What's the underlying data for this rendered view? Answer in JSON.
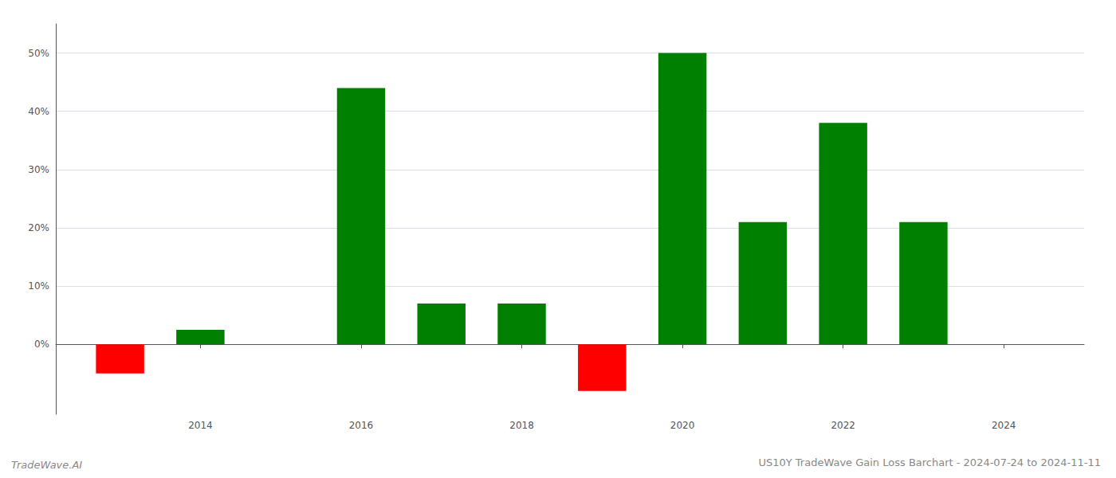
{
  "chart_data": {
    "type": "bar",
    "title": "US10Y TradeWave Gain Loss Barchart - 2024-07-24 to 2024-11-11",
    "annotations": [
      "TradeWave.AI"
    ],
    "x": [
      2013,
      2014,
      2016,
      2017,
      2018,
      2019,
      2020,
      2021,
      2022,
      2023
    ],
    "values": [
      -5.0,
      2.5,
      44.0,
      7.0,
      7.0,
      -8.0,
      50.0,
      21.0,
      38.0,
      21.0
    ],
    "colors": [
      "#ff0000",
      "#008000",
      "#008000",
      "#008000",
      "#008000",
      "#ff0000",
      "#008000",
      "#008000",
      "#008000",
      "#008000"
    ],
    "xlim": [
      2012.2,
      2025.0
    ],
    "xticks": [
      2014,
      2016,
      2018,
      2020,
      2022,
      2024
    ],
    "ylim": [
      -12,
      55
    ],
    "yticks": [
      {
        "value": 0,
        "label": "0%"
      },
      {
        "value": 10,
        "label": "10%"
      },
      {
        "value": 20,
        "label": "20%"
      },
      {
        "value": 30,
        "label": "30%"
      },
      {
        "value": 40,
        "label": "40%"
      },
      {
        "value": 50,
        "label": "50%"
      }
    ],
    "grid": true
  }
}
